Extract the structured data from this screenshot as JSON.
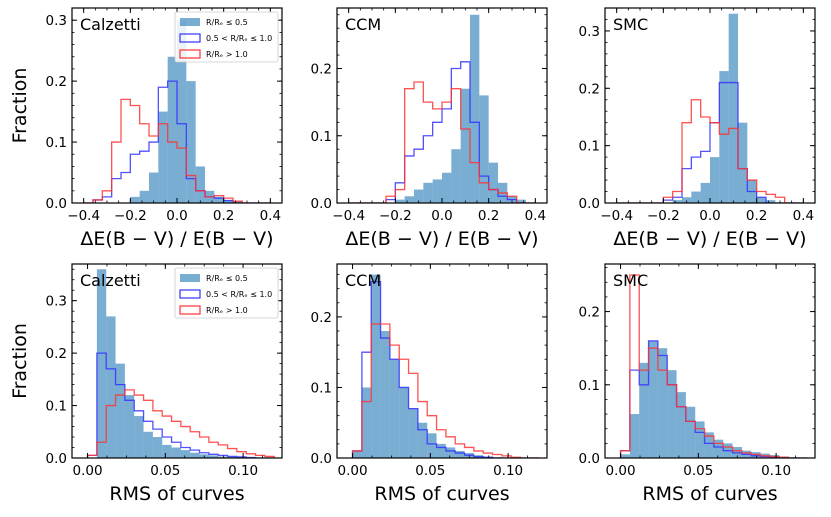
{
  "figure": {
    "ylabel": "Fraction"
  },
  "legend": {
    "entries": [
      {
        "label": "R/Rₑ ≤ 0.5",
        "style": "filled",
        "color": "#1f77b4"
      },
      {
        "label": "0.5 < R/Rₑ ≤ 1.0",
        "style": "step",
        "color": "#0000ff"
      },
      {
        "label": "R/Rₑ > 1.0",
        "style": "step",
        "color": "#ff0000"
      }
    ]
  },
  "colors": {
    "inner": "#1f77b4",
    "mid": "#3333ff",
    "outer": "#ff3333"
  },
  "chart_data": [
    {
      "type": "histogram",
      "title": "Calzetti",
      "row": 0,
      "col": 0,
      "xlabel": "ΔE(B − V) / E(B − V)",
      "ylabel": "Fraction",
      "xlim": [
        -0.45,
        0.45
      ],
      "ylim": [
        0,
        0.32
      ],
      "xticks": [
        -0.4,
        -0.2,
        0.0,
        0.2,
        0.4
      ],
      "xticklabels": [
        "−0.4",
        "−0.2",
        "0.0",
        "0.2",
        "0.4"
      ],
      "yticks": [
        0.0,
        0.1,
        0.2,
        0.3
      ],
      "yticklabels": [
        "0.0",
        "0.1",
        "0.2",
        "0.3"
      ],
      "bin_start": -0.4,
      "bin_width": 0.04,
      "legend": true,
      "series": [
        {
          "name": "R/Rₑ ≤ 0.5",
          "style": "filled",
          "values": [
            0,
            0,
            0,
            0,
            0,
            0.01,
            0.02,
            0.05,
            0.15,
            0.24,
            0.3,
            0.2,
            0.06,
            0.02,
            0.01,
            0.005,
            0.003,
            0,
            0,
            0
          ]
        },
        {
          "name": "0.5 < R/Rₑ ≤ 1.0",
          "style": "step",
          "values": [
            0,
            0.005,
            0.01,
            0.04,
            0.05,
            0.08,
            0.085,
            0.1,
            0.19,
            0.2,
            0.13,
            0.04,
            0.02,
            0.01,
            0.008,
            0.004,
            0,
            0,
            0,
            0
          ]
        },
        {
          "name": "R/Rₑ > 1.0",
          "style": "step",
          "values": [
            0,
            0.005,
            0.02,
            0.1,
            0.17,
            0.16,
            0.13,
            0.11,
            0.13,
            0.1,
            0.09,
            0.045,
            0.02,
            0.01,
            0.012,
            0.008,
            0.003,
            0,
            0,
            0
          ]
        }
      ]
    },
    {
      "type": "histogram",
      "title": "CCM",
      "row": 0,
      "col": 1,
      "xlabel": "ΔE(B − V) / E(B − V)",
      "ylabel": "",
      "xlim": [
        -0.45,
        0.45
      ],
      "ylim": [
        0,
        0.29
      ],
      "xticks": [
        -0.4,
        -0.2,
        0.0,
        0.2,
        0.4
      ],
      "xticklabels": [
        "−0.4",
        "−0.2",
        "0.0",
        "0.2",
        "0.4"
      ],
      "yticks": [
        0.0,
        0.1,
        0.2
      ],
      "yticklabels": [
        "0.0",
        "0.1",
        "0.2"
      ],
      "bin_start": -0.4,
      "bin_width": 0.04,
      "legend": false,
      "series": [
        {
          "name": "R/Rₑ ≤ 0.5",
          "style": "filled",
          "values": [
            0,
            0,
            0,
            0,
            0,
            0.005,
            0.01,
            0.02,
            0.03,
            0.035,
            0.045,
            0.08,
            0.17,
            0.28,
            0.16,
            0.06,
            0.03,
            0.01,
            0.005,
            0
          ]
        },
        {
          "name": "0.5 < R/Rₑ ≤ 1.0",
          "style": "step",
          "values": [
            0,
            0,
            0,
            0,
            0.005,
            0.03,
            0.07,
            0.08,
            0.1,
            0.12,
            0.14,
            0.2,
            0.21,
            0.12,
            0.04,
            0.02,
            0.01,
            0.005,
            0,
            0
          ]
        },
        {
          "name": "R/Rₑ > 1.0",
          "style": "step",
          "values": [
            0,
            0,
            0,
            0,
            0.01,
            0.02,
            0.17,
            0.18,
            0.15,
            0.14,
            0.15,
            0.17,
            0.11,
            0.06,
            0.03,
            0.02,
            0.015,
            0.01,
            0,
            0
          ]
        }
      ]
    },
    {
      "type": "histogram",
      "title": "SMC",
      "row": 0,
      "col": 2,
      "xlabel": "ΔE(B − V) / E(B − V)",
      "ylabel": "",
      "xlim": [
        -0.45,
        0.45
      ],
      "ylim": [
        0,
        0.34
      ],
      "xticks": [
        -0.4,
        -0.2,
        0.0,
        0.2,
        0.4
      ],
      "xticklabels": [
        "−0.4",
        "−0.2",
        "0.0",
        "0.2",
        "0.4"
      ],
      "yticks": [
        0.0,
        0.1,
        0.2,
        0.3
      ],
      "yticklabels": [
        "0.0",
        "0.1",
        "0.2",
        "0.3"
      ],
      "bin_start": -0.4,
      "bin_width": 0.04,
      "legend": false,
      "series": [
        {
          "name": "R/Rₑ ≤ 0.5",
          "style": "filled",
          "values": [
            0,
            0,
            0,
            0,
            0,
            0,
            0.005,
            0.01,
            0.02,
            0.035,
            0.08,
            0.23,
            0.33,
            0.14,
            0.04,
            0.01,
            0.005,
            0,
            0,
            0
          ]
        },
        {
          "name": "0.5 < R/Rₑ ≤ 1.0",
          "style": "step",
          "values": [
            0,
            0,
            0,
            0,
            0,
            0.005,
            0.01,
            0.06,
            0.08,
            0.09,
            0.14,
            0.21,
            0.21,
            0.06,
            0.02,
            0.01,
            0,
            0,
            0,
            0
          ]
        },
        {
          "name": "R/Rₑ > 1.0",
          "style": "step",
          "values": [
            0,
            0,
            0,
            0,
            0,
            0.01,
            0.02,
            0.14,
            0.18,
            0.15,
            0.14,
            0.12,
            0.13,
            0.06,
            0.04,
            0.02,
            0.015,
            0.01,
            0,
            0
          ]
        }
      ]
    },
    {
      "type": "histogram",
      "title": "Calzetti",
      "row": 1,
      "col": 0,
      "xlabel": "RMS of curves",
      "ylabel": "Fraction",
      "xlim": [
        -0.01,
        0.125
      ],
      "ylim": [
        0,
        0.37
      ],
      "xticks": [
        0.0,
        0.05,
        0.1
      ],
      "xticklabels": [
        "0.00",
        "0.05",
        "0.10"
      ],
      "yticks": [
        0.0,
        0.1,
        0.2,
        0.3
      ],
      "yticklabels": [
        "0.0",
        "0.1",
        "0.2",
        "0.3"
      ],
      "bin_start": 0.0,
      "bin_width": 0.006,
      "legend": true,
      "series": [
        {
          "name": "R/Rₑ ≤ 0.5",
          "style": "filled",
          "values": [
            0,
            0.36,
            0.27,
            0.18,
            0.12,
            0.08,
            0.05,
            0.04,
            0.025,
            0.02,
            0.015,
            0.01,
            0.007,
            0.005,
            0.003,
            0.002,
            0.001,
            0.001,
            0,
            0
          ]
        },
        {
          "name": "0.5 < R/Rₑ ≤ 1.0",
          "style": "step",
          "values": [
            0.005,
            0.2,
            0.17,
            0.14,
            0.11,
            0.09,
            0.07,
            0.055,
            0.04,
            0.03,
            0.02,
            0.015,
            0.01,
            0.007,
            0.005,
            0.003,
            0.002,
            0.001,
            0,
            0
          ]
        },
        {
          "name": "R/Rₑ > 1.0",
          "style": "step",
          "values": [
            0.005,
            0.03,
            0.1,
            0.12,
            0.13,
            0.12,
            0.11,
            0.09,
            0.08,
            0.07,
            0.06,
            0.05,
            0.04,
            0.03,
            0.025,
            0.018,
            0.012,
            0.008,
            0.005,
            0.003
          ]
        }
      ]
    },
    {
      "type": "histogram",
      "title": "CCM",
      "row": 1,
      "col": 1,
      "xlabel": "RMS of curves",
      "ylabel": "",
      "xlim": [
        -0.01,
        0.125
      ],
      "ylim": [
        0,
        0.275
      ],
      "xticks": [
        0.0,
        0.05,
        0.1
      ],
      "xticklabels": [
        "0.00",
        "0.05",
        "0.10"
      ],
      "yticks": [
        0.0,
        0.1,
        0.2
      ],
      "yticklabels": [
        "0.0",
        "0.1",
        "0.2"
      ],
      "bin_start": 0.0,
      "bin_width": 0.006,
      "legend": false,
      "series": [
        {
          "name": "R/Rₑ ≤ 0.5",
          "style": "filled",
          "values": [
            0.01,
            0.1,
            0.26,
            0.18,
            0.14,
            0.1,
            0.07,
            0.05,
            0.035,
            0.02,
            0.015,
            0.01,
            0.007,
            0.004,
            0.002,
            0.001,
            0,
            0,
            0,
            0
          ]
        },
        {
          "name": "0.5 < R/Rₑ ≤ 1.0",
          "style": "step",
          "values": [
            0.01,
            0.15,
            0.25,
            0.17,
            0.14,
            0.1,
            0.07,
            0.04,
            0.02,
            0.015,
            0.01,
            0.007,
            0.004,
            0.002,
            0.001,
            0,
            0,
            0,
            0,
            0
          ]
        },
        {
          "name": "R/Rₑ > 1.0",
          "style": "step",
          "values": [
            0.01,
            0.08,
            0.19,
            0.19,
            0.16,
            0.14,
            0.12,
            0.08,
            0.06,
            0.04,
            0.03,
            0.02,
            0.015,
            0.01,
            0.007,
            0.005,
            0.003,
            0.001,
            0,
            0
          ]
        }
      ]
    },
    {
      "type": "histogram",
      "title": "SMC",
      "row": 1,
      "col": 2,
      "xlabel": "RMS of curves",
      "ylabel": "",
      "xlim": [
        -0.01,
        0.125
      ],
      "ylim": [
        0,
        0.265
      ],
      "xticks": [
        0.0,
        0.05,
        0.1
      ],
      "xticklabels": [
        "0.00",
        "0.05",
        "0.10"
      ],
      "yticks": [
        0.0,
        0.1,
        0.2
      ],
      "yticklabels": [
        "0.0",
        "0.1",
        "0.2"
      ],
      "bin_start": 0.0,
      "bin_width": 0.006,
      "legend": false,
      "series": [
        {
          "name": "R/Rₑ ≤ 0.5",
          "style": "filled",
          "values": [
            0.005,
            0.06,
            0.13,
            0.16,
            0.15,
            0.12,
            0.09,
            0.07,
            0.05,
            0.035,
            0.025,
            0.02,
            0.015,
            0.01,
            0.008,
            0.006,
            0.004,
            0.002,
            0.001,
            0
          ]
        },
        {
          "name": "0.5 < R/Rₑ ≤ 1.0",
          "style": "step",
          "values": [
            0.01,
            0.12,
            0.1,
            0.16,
            0.14,
            0.1,
            0.07,
            0.05,
            0.035,
            0.02,
            0.015,
            0.01,
            0.007,
            0.005,
            0.003,
            0.002,
            0.001,
            0,
            0,
            0
          ]
        },
        {
          "name": "R/Rₑ > 1.0",
          "style": "step",
          "values": [
            0.01,
            0.25,
            0.12,
            0.15,
            0.12,
            0.1,
            0.07,
            0.05,
            0.04,
            0.03,
            0.02,
            0.015,
            0.01,
            0.007,
            0.005,
            0.003,
            0.002,
            0.001,
            0,
            0
          ]
        }
      ]
    }
  ]
}
